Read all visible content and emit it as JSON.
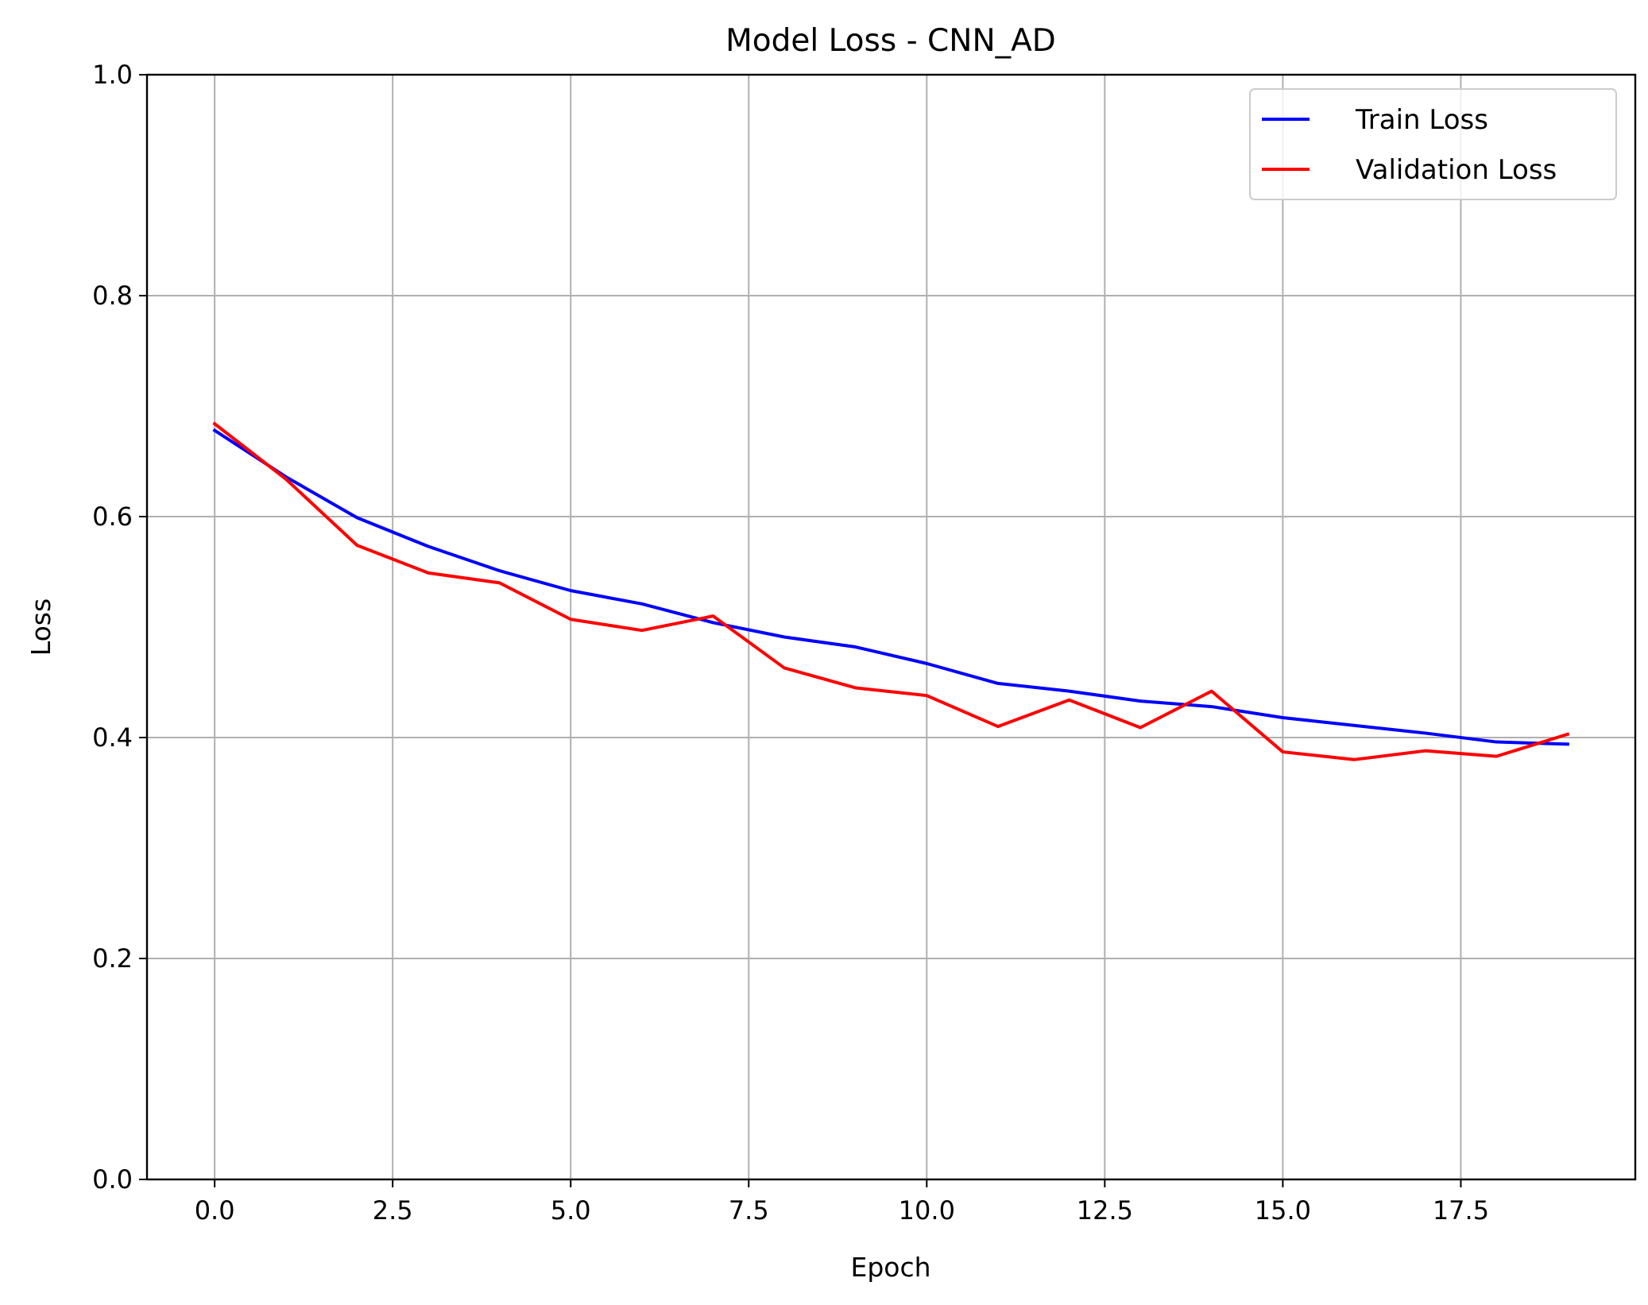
{
  "chart_data": {
    "type": "line",
    "title": "Model Loss - CNN_AD",
    "xlabel": "Epoch",
    "ylabel": "Loss",
    "xlim": [
      -0.95,
      19.95
    ],
    "ylim": [
      0.0,
      1.0
    ],
    "xticks": [
      0.0,
      2.5,
      5.0,
      7.5,
      10.0,
      12.5,
      15.0,
      17.5
    ],
    "xtick_labels": [
      "0.0",
      "2.5",
      "5.0",
      "7.5",
      "10.0",
      "12.5",
      "15.0",
      "17.5"
    ],
    "yticks": [
      0.0,
      0.2,
      0.4,
      0.6,
      0.8,
      1.0
    ],
    "ytick_labels": [
      "0.0",
      "0.2",
      "0.4",
      "0.6",
      "0.8",
      "1.0"
    ],
    "grid": true,
    "legend_position": "top-right",
    "x": [
      0,
      1,
      2,
      3,
      4,
      5,
      6,
      7,
      8,
      9,
      10,
      11,
      12,
      13,
      14,
      15,
      16,
      17,
      18,
      19
    ],
    "series": [
      {
        "name": "Train Loss",
        "color": "#0000ff",
        "values": [
          0.678,
          0.636,
          0.599,
          0.573,
          0.551,
          0.533,
          0.521,
          0.504,
          0.491,
          0.482,
          0.467,
          0.449,
          0.442,
          0.433,
          0.428,
          0.418,
          0.411,
          0.404,
          0.396,
          0.394
        ]
      },
      {
        "name": "Validation Loss",
        "color": "#ff0000",
        "values": [
          0.684,
          0.634,
          0.574,
          0.549,
          0.54,
          0.507,
          0.497,
          0.51,
          0.463,
          0.445,
          0.438,
          0.41,
          0.434,
          0.409,
          0.442,
          0.387,
          0.38,
          0.388,
          0.383,
          0.403
        ]
      }
    ]
  }
}
